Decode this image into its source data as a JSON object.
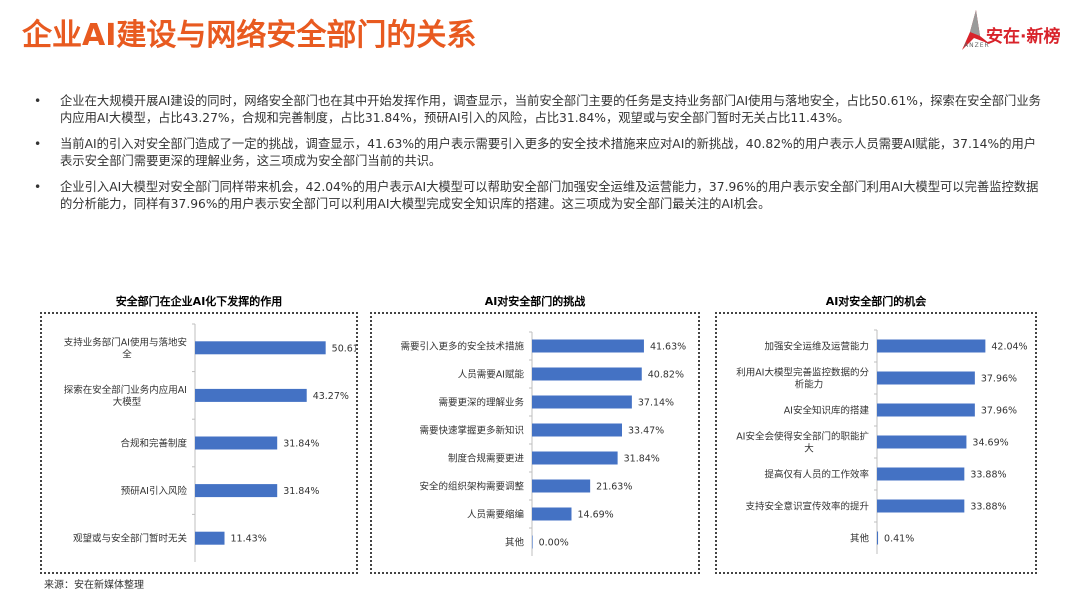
{
  "header": {
    "title": "企业AI建设与网络安全部门的关系",
    "logo_text": "安在·新榜",
    "logo_sub": "ANZER"
  },
  "bullets": [
    "企业在大规模开展AI建设的同时，网络安全部门也在其中开始发挥作用，调查显示，当前安全部门主要的任务是支持业务部门AI使用与落地安全，占比50.61%，探索在安全部门业务内应用AI大模型，占比43.27%，合规和完善制度，占比31.84%，预研AI引入的风险，占比31.84%，观望或与安全部门暂时无关占比11.43%。",
    "当前AI的引入对安全部门造成了一定的挑战，调查显示，41.63%的用户表示需要引入更多的安全技术措施来应对AI的新挑战，40.82%的用户表示人员需要AI赋能，37.14%的用户表示安全部门需要更深的理解业务，这三项成为安全部门当前的共识。",
    "企业引入AI大模型对安全部门同样带来机会，42.04%的用户表示AI大模型可以帮助安全部门加强安全运维及运营能力，37.96%的用户表示安全部门利用AI大模型可以完善监控数据的分析能力，同样有37.96%的用户表示安全部门可以利用AI大模型完成安全知识库的搭建。这三项成为安全部门最关注的AI机会。"
  ],
  "bullet_marker": "•",
  "source": "来源：安在新媒体整理",
  "colors": {
    "title": "#e85a20",
    "bar": "#4472c4",
    "logo": "#d8222a"
  },
  "chart_data": [
    {
      "type": "bar",
      "orientation": "horizontal",
      "title": "安全部门在企业AI化下发挥的作用",
      "categories": [
        "支持业务部门AI使用与落地安全",
        "探索在安全部门业务内应用AI大模型",
        "合规和完善制度",
        "预研AI引入风险",
        "观望或与安全部门暂时无关"
      ],
      "category_lines": [
        [
          "支持业务部门AI使用与落地安",
          "全"
        ],
        [
          "探索在安全部门业务内应用AI",
          "大模型"
        ],
        [
          "合规和完善制度"
        ],
        [
          "预研AI引入风险"
        ],
        [
          "观望或与安全部门暂时无关"
        ]
      ],
      "values": [
        50.61,
        43.27,
        31.84,
        31.84,
        11.43
      ],
      "value_labels": [
        "50.61%",
        "43.27%",
        "31.84%",
        "31.84%",
        "11.43%"
      ],
      "xlim": [
        0,
        55
      ],
      "grid": false,
      "legend": "none"
    },
    {
      "type": "bar",
      "orientation": "horizontal",
      "title": "AI对安全部门的挑战",
      "categories": [
        "需要引入更多的安全技术措施",
        "人员需要AI赋能",
        "需要更深的理解业务",
        "需要快速掌握更多新知识",
        "制度合规需要更进",
        "安全的组织架构需要调整",
        "人员需要缩编",
        "其他"
      ],
      "category_lines": [
        [
          "需要引入更多的安全技术措施"
        ],
        [
          "人员需要AI赋能"
        ],
        [
          "需要更深的理解业务"
        ],
        [
          "需要快速掌握更多新知识"
        ],
        [
          "制度合规需要更进"
        ],
        [
          "安全的组织架构需要调整"
        ],
        [
          "人员需要缩编"
        ],
        [
          "其他"
        ]
      ],
      "values": [
        41.63,
        40.82,
        37.14,
        33.47,
        31.84,
        21.63,
        14.69,
        0.0
      ],
      "value_labels": [
        "41.63%",
        "40.82%",
        "37.14%",
        "33.47%",
        "31.84%",
        "21.63%",
        "14.69%",
        "0.00%"
      ],
      "xlim": [
        0,
        45
      ],
      "grid": false,
      "legend": "none"
    },
    {
      "type": "bar",
      "orientation": "horizontal",
      "title": "AI对安全部门的机会",
      "categories": [
        "加强安全运维及运营能力",
        "利用AI大模型完善监控数据的分析能力",
        "AI安全知识库的搭建",
        "AI安全会使得安全部门的职能扩大",
        "提高仅有人员的工作效率",
        "支持安全意识宣传效率的提升",
        "其他"
      ],
      "category_lines": [
        [
          "加强安全运维及运营能力"
        ],
        [
          "利用AI大模型完善监控数据的分",
          "析能力"
        ],
        [
          "AI安全知识库的搭建"
        ],
        [
          "AI安全会使得安全部门的职能扩",
          "大"
        ],
        [
          "提高仅有人员的工作效率"
        ],
        [
          "支持安全意识宣传效率的提升"
        ],
        [
          "其他"
        ]
      ],
      "values": [
        42.04,
        37.96,
        37.96,
        34.69,
        33.88,
        33.88,
        0.41
      ],
      "value_labels": [
        "42.04%",
        "37.96%",
        "37.96%",
        "34.69%",
        "33.88%",
        "33.88%",
        "0.41%"
      ],
      "xlim": [
        0,
        45
      ],
      "grid": false,
      "legend": "none"
    }
  ]
}
